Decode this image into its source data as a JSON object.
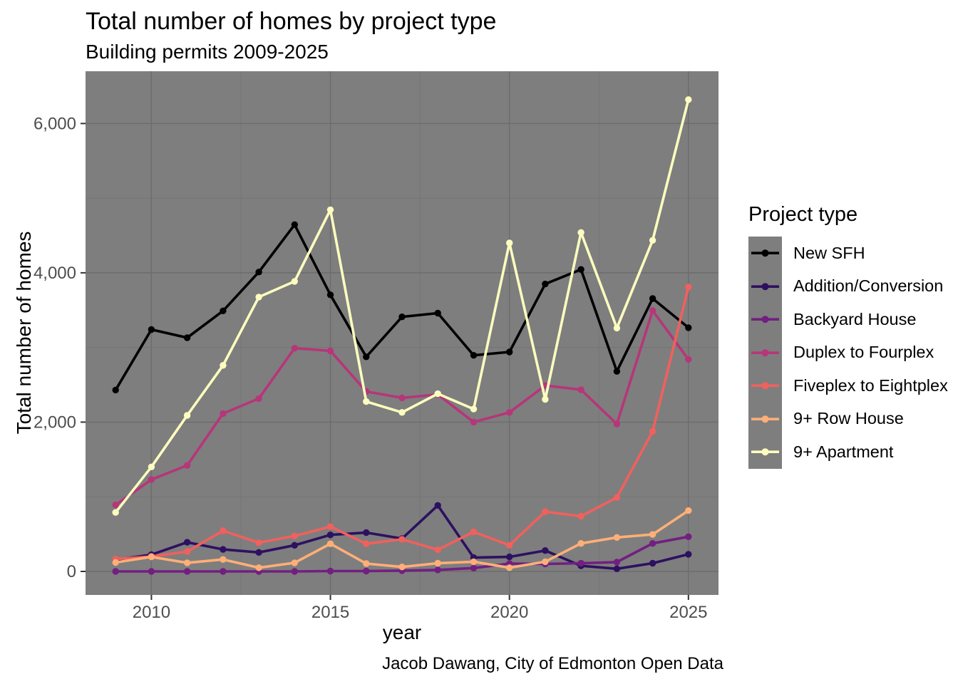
{
  "header": {
    "title": "Total number of homes by project type",
    "subtitle": "Building permits 2009-2025"
  },
  "footer": {
    "caption": "Jacob Dawang, City of Edmonton Open Data"
  },
  "legend": {
    "title": "Project type"
  },
  "theme": {
    "panel_bg": "#7E7E7E",
    "grid_major": "#6D6D6D",
    "grid_minor": "#767676",
    "tick_mark": "#333333",
    "tick_text": "#4D4D4D",
    "text": "#000000"
  },
  "chart_data": {
    "type": "line",
    "title": "Total number of homes by project type",
    "subtitle": "Building permits 2009-2025",
    "xlabel": "year",
    "ylabel": "Total number of homes",
    "caption": "Jacob Dawang, City of Edmonton Open Data",
    "legend_position": "right",
    "grid": true,
    "x": [
      2009,
      2010,
      2011,
      2012,
      2013,
      2014,
      2015,
      2016,
      2017,
      2018,
      2019,
      2020,
      2021,
      2022,
      2023,
      2024,
      2025
    ],
    "x_domain": [
      2008.16,
      2025.84
    ],
    "y_domain": [
      -315,
      6700
    ],
    "x_ticks": [
      {
        "value": 2010,
        "label": "2010"
      },
      {
        "value": 2015,
        "label": "2015"
      },
      {
        "value": 2020,
        "label": "2020"
      },
      {
        "value": 2025,
        "label": "2025"
      }
    ],
    "x_minor": [
      2012.5,
      2017.5,
      2022.5
    ],
    "y_ticks": [
      {
        "value": 0,
        "label": "0"
      },
      {
        "value": 2000,
        "label": "2,000"
      },
      {
        "value": 4000,
        "label": "4,000"
      },
      {
        "value": 6000,
        "label": "6,000"
      }
    ],
    "y_minor": [
      1000,
      3000,
      5000
    ],
    "series": [
      {
        "name": "New SFH",
        "color": "#000004",
        "values": [
          2430,
          3240,
          3130,
          3490,
          4010,
          4645,
          3705,
          2875,
          3410,
          3460,
          2895,
          2940,
          3850,
          4045,
          2680,
          3655,
          3265
        ]
      },
      {
        "name": "Addition/Conversion",
        "color": "#2D1160",
        "values": [
          155,
          225,
          390,
          295,
          255,
          350,
          490,
          520,
          440,
          885,
          185,
          195,
          280,
          75,
          35,
          110,
          230
        ]
      },
      {
        "name": "Backyard House",
        "color": "#721F81",
        "values": [
          0,
          0,
          0,
          0,
          0,
          0,
          5,
          5,
          10,
          20,
          45,
          105,
          100,
          110,
          125,
          375,
          465
        ]
      },
      {
        "name": "Duplex to Fourplex",
        "color": "#B63679",
        "values": [
          890,
          1230,
          1420,
          2115,
          2315,
          2990,
          2955,
          2410,
          2325,
          2370,
          2000,
          2130,
          2490,
          2435,
          1975,
          3495,
          2840
        ]
      },
      {
        "name": "Fiveplex to Eightplex",
        "color": "#F1605D",
        "values": [
          165,
          200,
          265,
          545,
          385,
          475,
          600,
          370,
          430,
          290,
          530,
          350,
          800,
          740,
          990,
          1875,
          3810
        ]
      },
      {
        "name": "9+ Row House",
        "color": "#FEAF77",
        "values": [
          120,
          195,
          115,
          160,
          50,
          115,
          370,
          105,
          60,
          110,
          130,
          50,
          130,
          375,
          455,
          495,
          815
        ]
      },
      {
        "name": "9+ Apartment",
        "color": "#FCFDBF",
        "values": [
          790,
          1400,
          2090,
          2760,
          3675,
          3885,
          4845,
          2275,
          2130,
          2380,
          2175,
          4400,
          2305,
          4540,
          3260,
          4435,
          6320
        ]
      }
    ]
  }
}
